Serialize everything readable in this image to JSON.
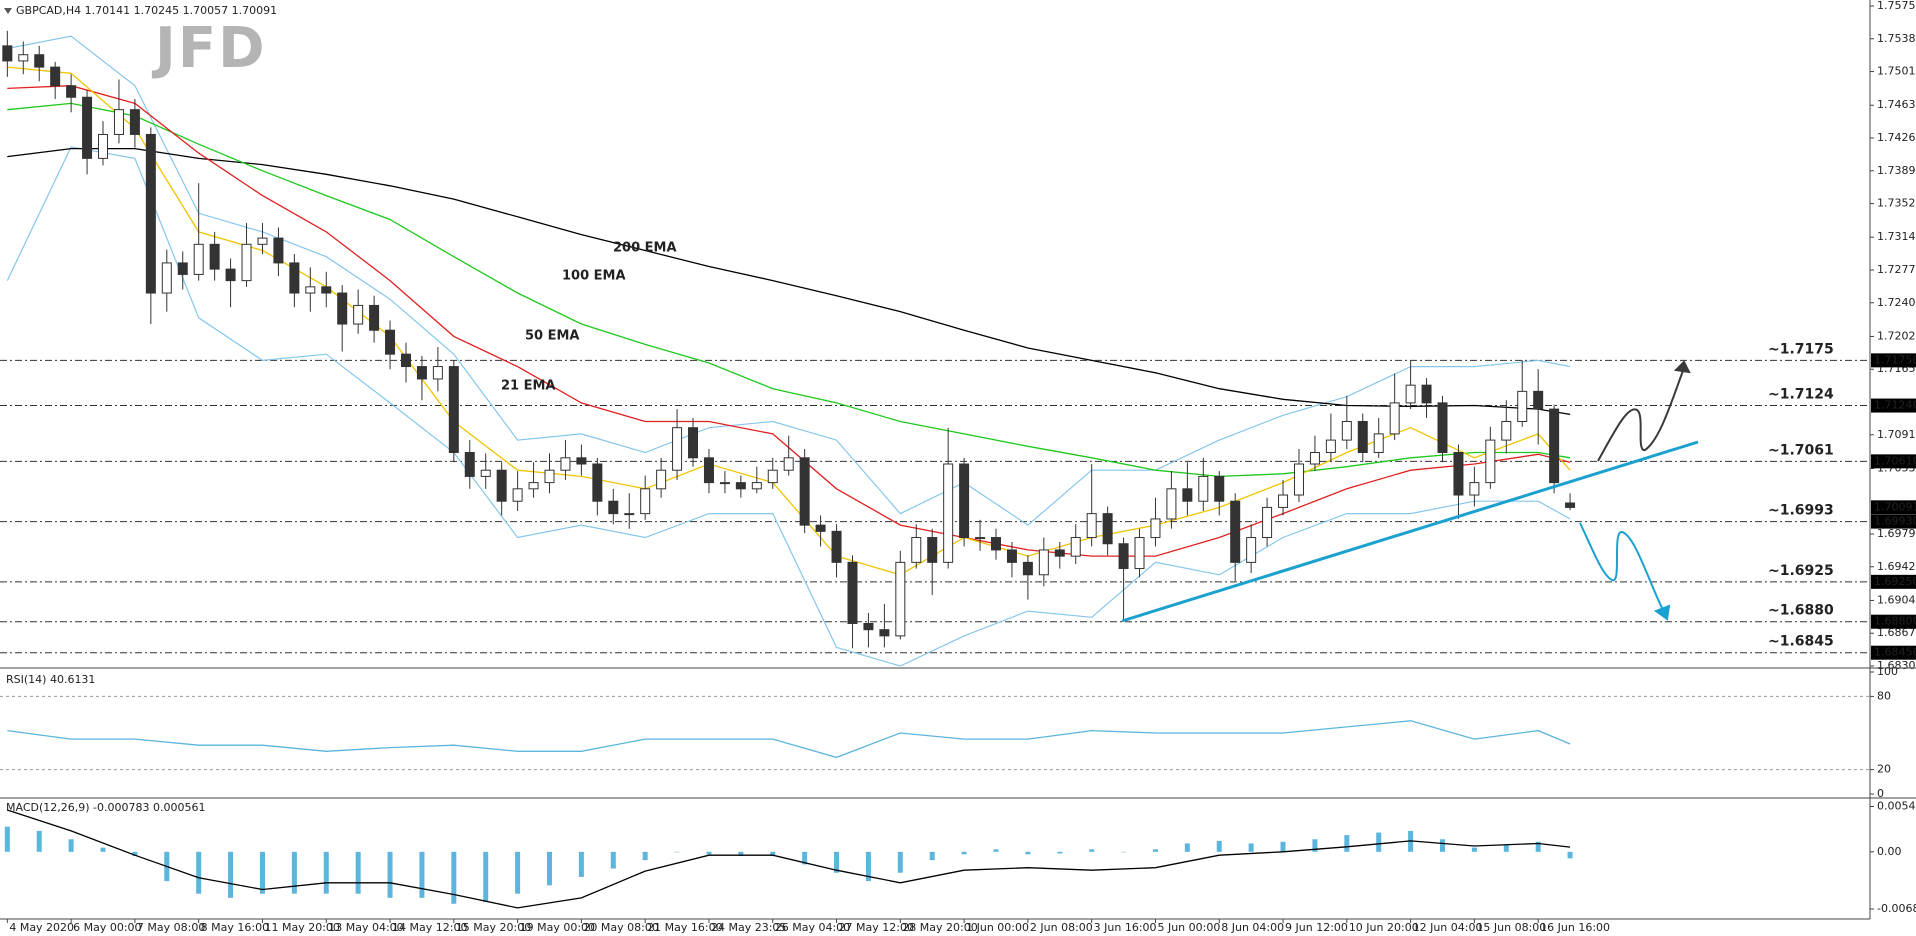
{
  "logo": "JFD",
  "chart_data": [
    {
      "type": "candlestick",
      "title": "GBPCAD,H4  1.70141 1.70245 1.70057 1.70091",
      "categories": [
        "4 May 2020",
        null,
        null,
        null,
        "6 May 00:00",
        null,
        null,
        null,
        "7 May 08:00",
        null,
        null,
        null,
        "8 May 16:00",
        null,
        null,
        null,
        "11 May 20:00",
        null,
        null,
        null,
        "13 May 04:00",
        null,
        null,
        null,
        "14 May 12:00",
        null,
        null,
        null,
        "15 May 20:00",
        null,
        null,
        null,
        "19 May 00:00",
        null,
        null,
        null,
        "20 May 08:00",
        null,
        null,
        null,
        "21 May 16:00",
        null,
        null,
        null,
        "24 May 23:05",
        null,
        null,
        null,
        "26 May 04:00",
        null,
        null,
        null,
        "27 May 12:00",
        null,
        null,
        null,
        "28 May 20:00",
        null,
        null,
        null,
        "1 Jun 00:00",
        null,
        null,
        null,
        "2 Jun 08:00",
        null,
        null,
        null,
        "3 Jun 16:00",
        null,
        null,
        null,
        "5 Jun 00:00",
        null,
        null,
        null,
        "8 Jun 04:00",
        null,
        null,
        null,
        "9 Jun 12:00",
        null,
        null,
        null,
        "10 Jun 20:00",
        null,
        null,
        null,
        "12 Jun 04:00",
        null,
        null,
        null,
        "15 Jun 08:00",
        null,
        null,
        null,
        "16 Jun 16:00",
        null,
        null
      ],
      "open": [
        1.753,
        1.7513,
        1.752,
        1.7506,
        1.7485,
        1.7472,
        1.7403,
        1.743,
        1.7458,
        1.743,
        1.7251,
        1.7285,
        1.7272,
        1.7306,
        1.7278,
        1.7265,
        1.7306,
        1.7313,
        1.7285,
        1.7251,
        1.7258,
        1.7251,
        1.7216,
        1.7237,
        1.7209,
        1.7182,
        1.7168,
        1.7154,
        1.7168,
        1.7071,
        1.7044,
        1.7051,
        1.7016,
        1.703,
        1.7037,
        1.7051,
        1.7065,
        1.7058,
        1.7016,
        1.7002,
        1.7002,
        1.703,
        1.7051,
        1.7099,
        1.7065,
        1.7037,
        1.7037,
        1.703,
        1.7037,
        1.7051,
        1.7065,
        1.6989,
        1.6982,
        1.6947,
        1.6878,
        1.6871,
        1.6864,
        1.6947,
        1.6975,
        1.6947,
        1.7058,
        1.6975,
        1.6975,
        1.6961,
        1.6947,
        1.6933,
        1.6961,
        1.6954,
        1.6975,
        1.7002,
        1.6968,
        1.694,
        1.6975,
        1.6996,
        1.703,
        1.7016,
        1.7044,
        1.7016,
        1.6947,
        1.6975,
        1.7009,
        1.7023,
        1.7058,
        1.7071,
        1.7085,
        1.7106,
        1.7071,
        1.7092,
        1.7127,
        1.7147,
        1.7127,
        1.7071,
        1.7023,
        1.7037,
        1.7085,
        1.7106,
        1.714,
        1.712,
        1.7014
      ],
      "high": [
        1.7547,
        1.7535,
        1.753,
        1.7512,
        1.7498,
        1.748,
        1.7445,
        1.7492,
        1.747,
        1.7438,
        1.73,
        1.7298,
        1.7375,
        1.732,
        1.729,
        1.733,
        1.733,
        1.7325,
        1.7295,
        1.728,
        1.7275,
        1.726,
        1.7255,
        1.7248,
        1.722,
        1.7195,
        1.718,
        1.719,
        1.7175,
        1.7085,
        1.707,
        1.706,
        1.705,
        1.706,
        1.707,
        1.7085,
        1.708,
        1.7065,
        1.703,
        1.7025,
        1.7045,
        1.7065,
        1.712,
        1.711,
        1.7075,
        1.705,
        1.7045,
        1.7055,
        1.7065,
        1.709,
        1.7075,
        1.7,
        1.699,
        1.6955,
        1.689,
        1.69,
        1.696,
        1.699,
        1.6985,
        1.7099,
        1.7065,
        1.6995,
        1.6985,
        1.697,
        1.6955,
        1.6975,
        1.697,
        1.699,
        1.7058,
        1.701,
        1.6975,
        1.6985,
        1.702,
        1.705,
        1.706,
        1.7065,
        1.705,
        1.7025,
        1.699,
        1.702,
        1.704,
        1.7075,
        1.709,
        1.7115,
        1.7135,
        1.7115,
        1.711,
        1.716,
        1.7175,
        1.7155,
        1.7135,
        1.708,
        1.7055,
        1.71,
        1.713,
        1.7175,
        1.7165,
        1.7125,
        1.7025
      ],
      "low": [
        1.7495,
        1.7498,
        1.749,
        1.747,
        1.7455,
        1.7385,
        1.7395,
        1.742,
        1.7415,
        1.7216,
        1.723,
        1.7255,
        1.7265,
        1.7265,
        1.7235,
        1.7258,
        1.7295,
        1.727,
        1.7235,
        1.723,
        1.7235,
        1.7185,
        1.7205,
        1.7195,
        1.7165,
        1.715,
        1.713,
        1.714,
        1.706,
        1.703,
        1.703,
        1.7,
        1.7005,
        1.702,
        1.7025,
        1.704,
        1.7045,
        1.7,
        1.699,
        1.6985,
        1.6995,
        1.702,
        1.704,
        1.7055,
        1.7025,
        1.7025,
        1.702,
        1.7025,
        1.703,
        1.7045,
        1.698,
        1.6965,
        1.693,
        1.685,
        1.6851,
        1.6851,
        1.686,
        1.694,
        1.691,
        1.694,
        1.6965,
        1.696,
        1.695,
        1.693,
        1.6905,
        1.692,
        1.694,
        1.6945,
        1.6965,
        1.6955,
        1.6881,
        1.693,
        1.6965,
        1.6985,
        1.7,
        1.7005,
        1.7,
        1.6926,
        1.6935,
        1.6965,
        1.7,
        1.7015,
        1.705,
        1.706,
        1.7075,
        1.706,
        1.7065,
        1.7085,
        1.712,
        1.711,
        1.706,
        1.6996,
        1.701,
        1.703,
        1.707,
        1.71,
        1.708,
        1.7025,
        1.7006
      ],
      "close": [
        1.7513,
        1.752,
        1.7506,
        1.7485,
        1.7472,
        1.7403,
        1.743,
        1.7458,
        1.743,
        1.7251,
        1.7285,
        1.7272,
        1.7306,
        1.7278,
        1.7265,
        1.7306,
        1.7313,
        1.7285,
        1.7251,
        1.7258,
        1.7251,
        1.7216,
        1.7237,
        1.7209,
        1.7182,
        1.7168,
        1.7154,
        1.7168,
        1.7071,
        1.7044,
        1.7051,
        1.7016,
        1.703,
        1.7037,
        1.7051,
        1.7065,
        1.7058,
        1.7016,
        1.7002,
        1.7002,
        1.703,
        1.7051,
        1.7099,
        1.7065,
        1.7037,
        1.7037,
        1.703,
        1.7037,
        1.7051,
        1.7065,
        1.6989,
        1.6982,
        1.6947,
        1.6878,
        1.6871,
        1.6864,
        1.6947,
        1.6975,
        1.6947,
        1.7058,
        1.6975,
        1.6975,
        1.6961,
        1.6947,
        1.6933,
        1.6961,
        1.6954,
        1.6975,
        1.7002,
        1.6968,
        1.694,
        1.6975,
        1.6996,
        1.703,
        1.7016,
        1.7044,
        1.7016,
        1.6947,
        1.6975,
        1.7009,
        1.7023,
        1.7058,
        1.7071,
        1.7085,
        1.7106,
        1.7071,
        1.7092,
        1.7127,
        1.7147,
        1.7127,
        1.7071,
        1.7023,
        1.7037,
        1.7085,
        1.7106,
        1.714,
        1.712,
        1.7037,
        1.7009
      ],
      "up_color": "#ffffff",
      "down_color": "#333333",
      "ylim": [
        1.683,
        1.7575
      ],
      "yticks": [
        {
          "value": 1.7575,
          "label": "1.75750"
        },
        {
          "value": 1.7538,
          "label": "1.75380"
        },
        {
          "value": 1.7501,
          "label": "1.75010"
        },
        {
          "value": 1.7463,
          "label": "1.74630"
        },
        {
          "value": 1.7426,
          "label": "1.74260"
        },
        {
          "value": 1.7389,
          "label": "1.73890"
        },
        {
          "value": 1.7352,
          "label": "1.73520"
        },
        {
          "value": 1.7314,
          "label": "1.73140"
        },
        {
          "value": 1.7277,
          "label": "1.72770"
        },
        {
          "value": 1.724,
          "label": "1.72400"
        },
        {
          "value": 1.7202,
          "label": "1.72020"
        },
        {
          "value": 1.7165,
          "label": "1.71650"
        },
        {
          "value": 1.7091,
          "label": "1.70910"
        },
        {
          "value": 1.7053,
          "label": "1.70530"
        },
        {
          "value": 1.6979,
          "label": "1.69790"
        },
        {
          "value": 1.6942,
          "label": "1.69420"
        },
        {
          "value": 1.6904,
          "label": "1.69040"
        },
        {
          "value": 1.6867,
          "label": "1.68670"
        },
        {
          "value": 1.683,
          "label": "1.68300"
        }
      ],
      "x": [
        0,
        4,
        8,
        12,
        16,
        20,
        24,
        28,
        32,
        36,
        40,
        44,
        48,
        52,
        56,
        60,
        64,
        68,
        72,
        76,
        80,
        84,
        88,
        92,
        96,
        98
      ],
      "lines": [
        {
          "name": "200 EMA",
          "color": "#000000",
          "values": [
            1.7405,
            1.7414,
            1.7414,
            1.7403,
            1.7396,
            1.7385,
            1.7372,
            1.7357,
            1.7337,
            1.7317,
            1.7299,
            1.7281,
            1.7265,
            1.7248,
            1.723,
            1.7209,
            1.7189,
            1.7175,
            1.7161,
            1.7143,
            1.7131,
            1.7124,
            1.7123,
            1.7124,
            1.712,
            1.7114
          ]
        },
        {
          "name": "100 EMA",
          "color": "#1ec81e",
          "values": [
            1.7458,
            1.7465,
            1.7451,
            1.7419,
            1.7389,
            1.7361,
            1.7334,
            1.7292,
            1.7251,
            1.7216,
            1.7193,
            1.7172,
            1.7143,
            1.7127,
            1.7106,
            1.7092,
            1.7078,
            1.7065,
            1.7051,
            1.7044,
            1.7047,
            1.7055,
            1.7065,
            1.7071,
            1.7071,
            1.7065
          ]
        },
        {
          "name": "50 EMA",
          "color": "#e02020",
          "values": [
            1.7482,
            1.7485,
            1.7465,
            1.7409,
            1.7361,
            1.732,
            1.7265,
            1.7202,
            1.7168,
            1.7127,
            1.7106,
            1.7106,
            1.7092,
            1.703,
            1.6989,
            1.6975,
            1.6961,
            1.6954,
            1.6954,
            1.6975,
            1.7002,
            1.703,
            1.7051,
            1.7058,
            1.7069,
            1.706
          ]
        },
        {
          "name": "21 EMA",
          "color": "#f0c400",
          "values": [
            1.7506,
            1.7499,
            1.7437,
            1.732,
            1.7299,
            1.7258,
            1.7202,
            1.7106,
            1.7051,
            1.7044,
            1.703,
            1.7058,
            1.7037,
            1.6954,
            1.6933,
            1.6975,
            1.6954,
            1.6975,
            1.6989,
            1.7009,
            1.7037,
            1.7071,
            1.7099,
            1.7065,
            1.7092,
            1.7051
          ]
        }
      ],
      "bands": {
        "color": "#86c6ec",
        "upper": [
          1.7527,
          1.7541,
          1.7485,
          1.7341,
          1.732,
          1.7292,
          1.7244,
          1.7182,
          1.7085,
          1.7092,
          1.7071,
          1.7099,
          1.7106,
          1.7085,
          1.7002,
          1.7037,
          1.6989,
          1.7051,
          1.7051,
          1.7085,
          1.7113,
          1.7134,
          1.7168,
          1.7168,
          1.7175,
          1.7168
        ],
        "lower": [
          1.7265,
          1.7416,
          1.7403,
          1.7223,
          1.7175,
          1.7182,
          1.7127,
          1.7071,
          1.6975,
          1.6989,
          1.6975,
          1.7002,
          1.7002,
          1.6851,
          1.683,
          1.6864,
          1.6892,
          1.6885,
          1.6947,
          1.6933,
          1.6975,
          1.7002,
          1.7002,
          1.7016,
          1.7016,
          1.6996
        ]
      },
      "levels": [
        {
          "value": 1.7175,
          "label": "~1.7175",
          "axis_label": "1.71750",
          "color": "#3a3a3a"
        },
        {
          "value": 1.7124,
          "label": "~1.7124",
          "axis_label": "1.71240",
          "color": "#3a3a3a"
        },
        {
          "value": 1.7061,
          "label": "~1.7061",
          "axis_label": "1.70610",
          "color": "#3a3a3a"
        },
        {
          "value": 1.6993,
          "label": "~1.6993",
          "axis_label": "1.69930",
          "color": "#1ba1d0"
        },
        {
          "value": 1.6925,
          "label": "~1.6925",
          "axis_label": "1.69250",
          "color": "#1ba1d0"
        },
        {
          "value": 1.688,
          "label": "~1.6880",
          "axis_label": "1.68800",
          "color": "#1ba1d0"
        },
        {
          "value": 1.6845,
          "label": "~1.6845",
          "axis_label": "1.68450",
          "color": "#1ba1d0"
        }
      ],
      "last_price": {
        "value": 1.70091,
        "label": "1.70091"
      }
    },
    {
      "type": "line",
      "title": "RSI(14) 40.6131",
      "color": "#5bb5dc",
      "x": [
        0,
        4,
        8,
        12,
        16,
        20,
        24,
        28,
        32,
        36,
        40,
        44,
        48,
        52,
        56,
        60,
        64,
        68,
        72,
        76,
        80,
        84,
        88,
        92,
        96,
        98
      ],
      "values": [
        52,
        45,
        45,
        40,
        40,
        35,
        38,
        40,
        35,
        35,
        45,
        45,
        45,
        30,
        50,
        45,
        45,
        52,
        50,
        50,
        50,
        55,
        60,
        45,
        52,
        41
      ],
      "ylim": [
        0,
        100
      ],
      "yticks": [
        0,
        20,
        80,
        100
      ],
      "levels": [
        20,
        80
      ]
    },
    {
      "type": "macd",
      "title": "MACD(12,26,9) -0.000783 0.000561",
      "hist_x": [
        0,
        2,
        4,
        6,
        8,
        10,
        12,
        14,
        16,
        18,
        20,
        22,
        24,
        26,
        28,
        30,
        32,
        34,
        36,
        38,
        40,
        42,
        44,
        46,
        48,
        50,
        52,
        54,
        56,
        58,
        60,
        62,
        64,
        66,
        68,
        70,
        72,
        74,
        76,
        78,
        80,
        82,
        84,
        86,
        88,
        90,
        92,
        94,
        96,
        98
      ],
      "histogram": [
        0.003,
        0.0025,
        0.0015,
        0.0005,
        -0.0005,
        -0.0035,
        -0.005,
        -0.0055,
        -0.005,
        -0.005,
        -0.005,
        -0.005,
        -0.0055,
        -0.0055,
        -0.0062,
        -0.006,
        -0.005,
        -0.004,
        -0.003,
        -0.002,
        -0.001,
        0.0,
        -0.0003,
        -0.0005,
        -0.0005,
        -0.0015,
        -0.0025,
        -0.0035,
        -0.0025,
        -0.001,
        -0.0003,
        0.0003,
        -0.0003,
        -0.0002,
        0.0003,
        0.0,
        0.0003,
        0.001,
        0.0013,
        0.001,
        0.0012,
        0.0015,
        0.002,
        0.0023,
        0.0025,
        0.0015,
        0.0005,
        0.0008,
        0.0012,
        -0.000783
      ],
      "histogram_color": "#5bb5dc",
      "x": [
        0,
        4,
        8,
        12,
        16,
        20,
        24,
        28,
        32,
        36,
        40,
        44,
        48,
        52,
        56,
        60,
        64,
        68,
        72,
        76,
        80,
        84,
        88,
        92,
        96,
        98
      ],
      "signal": [
        0.005,
        0.0025,
        -0.0004,
        -0.0031,
        -0.0045,
        -0.0037,
        -0.0037,
        -0.0051,
        -0.0067,
        -0.0055,
        -0.0023,
        -0.0004,
        -0.0004,
        -0.0022,
        -0.0037,
        -0.0022,
        -0.0019,
        -0.0022,
        -0.0019,
        -0.0004,
        0.0,
        0.0006,
        0.0013,
        0.0007,
        0.001,
        0.000561
      ],
      "signal_color": "#000000",
      "ylim": [
        -0.006832,
        0.005415
      ],
      "yticks": [
        -0.006832,
        {
          "value": 0,
          "label": "0.00"
        },
        0.005415
      ]
    }
  ]
}
